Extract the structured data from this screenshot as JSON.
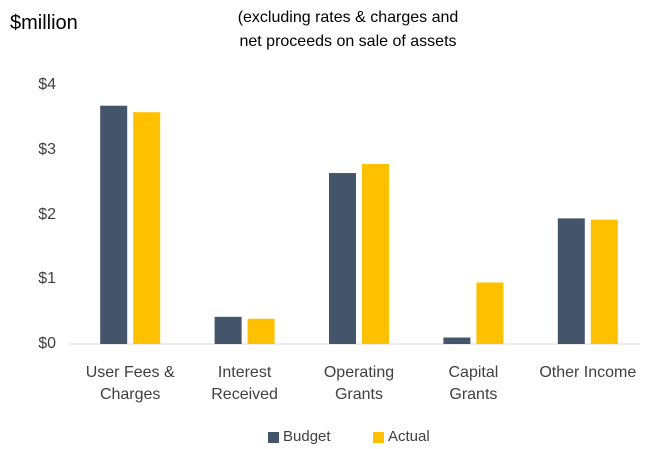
{
  "chart_data": {
    "type": "bar",
    "title": "$million",
    "subtitle": "(excluding rates & charges and\nnet proceeds on sale of assets",
    "categories": [
      "User Fees & Charges",
      "Interest Received",
      "Operating Grants",
      "Capital Grants",
      "Other Income"
    ],
    "series": [
      {
        "name": "Budget",
        "color": "#44546a",
        "values": [
          3.68,
          0.42,
          2.64,
          0.1,
          1.94
        ]
      },
      {
        "name": "Actual",
        "color": "#ffc000",
        "values": [
          3.58,
          0.39,
          2.78,
          0.95,
          1.92
        ]
      }
    ],
    "ylim": [
      0,
      4
    ],
    "yticks": [
      {
        "value": 0,
        "label": "$0"
      },
      {
        "value": 1,
        "label": "$1"
      },
      {
        "value": 2,
        "label": "$2"
      },
      {
        "value": 3,
        "label": "$3"
      },
      {
        "value": 4,
        "label": "$4"
      }
    ],
    "grid": false,
    "legend": "bottom"
  }
}
